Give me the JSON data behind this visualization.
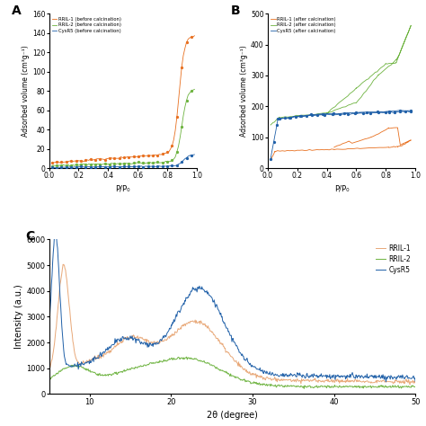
{
  "panel_A": {
    "title": "A",
    "xlabel": "P/P₀",
    "ylabel": "Adsorbed volume (cm³g⁻¹)",
    "ylim": [
      0,
      160
    ],
    "xlim": [
      0.0,
      1.0
    ],
    "yticks": [
      0,
      20,
      40,
      60,
      80,
      100,
      120,
      140,
      160
    ],
    "xticks": [
      0.0,
      0.2,
      0.4,
      0.6,
      0.8,
      1.0
    ],
    "series": [
      {
        "label": "RRIL-1 (before calcination)",
        "color": "#E87020"
      },
      {
        "label": "RRIL-2 (before calcination)",
        "color": "#6DB33F"
      },
      {
        "label": "CysR5 (before calcination)",
        "color": "#2060A8"
      }
    ]
  },
  "panel_B": {
    "title": "B",
    "xlabel": "P/P₀",
    "ylabel": "Adsorbed volume (cm³g⁻¹)",
    "ylim": [
      0,
      500
    ],
    "xlim": [
      0.0,
      1.0
    ],
    "yticks": [
      0,
      100,
      200,
      300,
      400,
      500
    ],
    "xticks": [
      0.0,
      0.2,
      0.4,
      0.6,
      0.8,
      1.0
    ],
    "series": [
      {
        "label": "RRIL-1 (after calcination)",
        "color": "#E87020"
      },
      {
        "label": "RRIL-2 (after calcination)",
        "color": "#6DB33F"
      },
      {
        "label": "CysR5 (after calcination)",
        "color": "#2060A8"
      }
    ]
  },
  "panel_C": {
    "title": "C",
    "xlabel": "2θ (degree)",
    "ylabel": "Intensity (a.u.)",
    "ylim": [
      0,
      6000
    ],
    "xlim": [
      5,
      50
    ],
    "yticks": [
      0,
      1000,
      2000,
      3000,
      4000,
      5000,
      6000
    ],
    "xticks": [
      10,
      20,
      30,
      40,
      50
    ],
    "series": [
      {
        "label": "RRIL-1",
        "color": "#E8A878"
      },
      {
        "label": "RRIL-2",
        "color": "#6DB33F"
      },
      {
        "label": "CysR5",
        "color": "#2060A8"
      }
    ]
  }
}
